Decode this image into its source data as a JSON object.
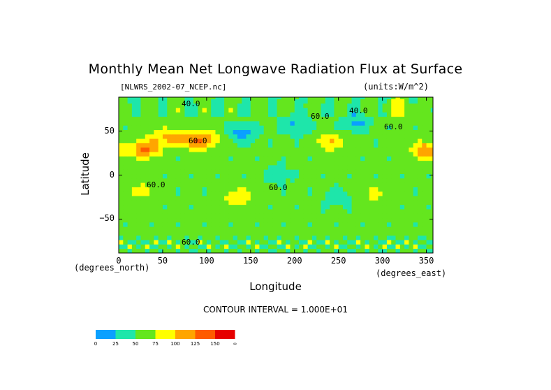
{
  "chart_data": {
    "type": "heatmap",
    "title": "Monthly Mean Net Longwave Radiation Flux at Surface",
    "file_label": "[NLWRS_2002-07_NCEP.nc]",
    "units_label": "(units:W/m^2)",
    "xlabel": "Longitude",
    "ylabel": "Latitude",
    "x_unit_label": "(degrees_east)",
    "y_unit_label": "(degrees_north)",
    "xlim": [
      0,
      357.5
    ],
    "ylim": [
      -88.5,
      88.5
    ],
    "x_ticks": [
      0,
      50,
      100,
      150,
      200,
      250,
      300,
      350
    ],
    "y_ticks": [
      50,
      0,
      -50
    ],
    "contour_interval_label": "CONTOUR INTERVAL = 1.000E+01",
    "contour_labels": [
      "40.0",
      "60.0",
      "60.0",
      "60.0",
      "60.0",
      "40.0",
      "60.0",
      "60.0"
    ],
    "colorbar": {
      "colors": [
        "#0aa0ff",
        "#1ee6aa",
        "#64e61e",
        "#ffff00",
        "#ffa500",
        "#ff5a00",
        "#e60000"
      ],
      "labels": [
        "0",
        "25",
        "50",
        "75",
        "100",
        "125",
        "150",
        "∞"
      ]
    },
    "field_features": [
      {
        "lon": 30,
        "lat": 30,
        "value": 130
      },
      {
        "lon": 55,
        "lat": 43,
        "value": 105
      },
      {
        "lon": 85,
        "lat": 40,
        "value": 120
      },
      {
        "lon": 105,
        "lat": 40,
        "value": 90
      },
      {
        "lon": 28,
        "lat": -18,
        "value": 85
      },
      {
        "lon": 135,
        "lat": -25,
        "value": 95
      },
      {
        "lon": 240,
        "lat": 38,
        "value": 100
      },
      {
        "lon": 290,
        "lat": -22,
        "value": 80
      },
      {
        "lon": 350,
        "lat": 28,
        "value": 125
      },
      {
        "lon": 320,
        "lat": 75,
        "value": 85
      },
      {
        "lon": 140,
        "lat": 48,
        "value": 15
      },
      {
        "lon": 200,
        "lat": 58,
        "value": 20
      },
      {
        "lon": 270,
        "lat": 60,
        "value": 20
      },
      {
        "lon": 180,
        "lat": 0,
        "value": 40
      },
      {
        "lon": 250,
        "lat": -25,
        "value": 35
      }
    ]
  }
}
